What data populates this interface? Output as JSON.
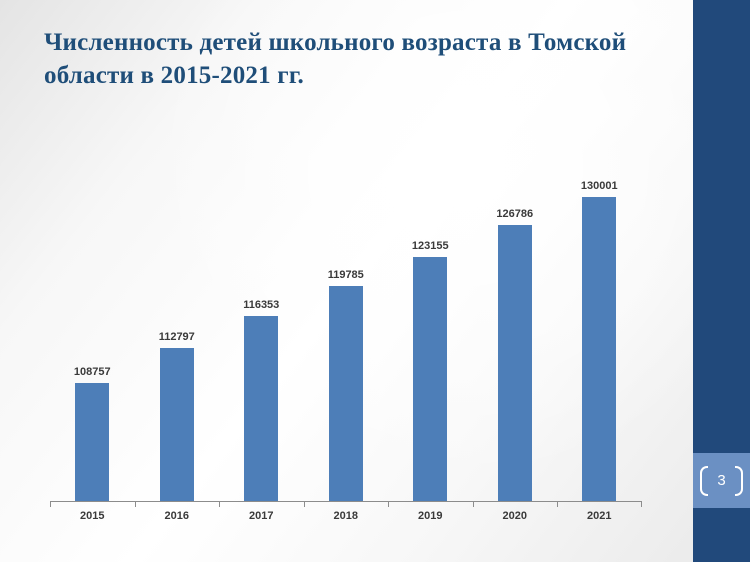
{
  "slide": {
    "title": "Численность детей школьного возраста в Томской области в 2015-2021 гг.",
    "page_number": "3"
  },
  "colors": {
    "title_text": "#1F4E79",
    "bar_fill": "#4D7EB8",
    "axis_line": "#8C8C8C",
    "label_text": "#3A3A3A",
    "side_strip": "#21497B",
    "page_plate": "#6B90C3",
    "page_text": "#FFFFFF"
  },
  "chart_data": {
    "type": "bar",
    "categories": [
      "2015",
      "2016",
      "2017",
      "2018",
      "2019",
      "2020",
      "2021"
    ],
    "values": [
      108757,
      112797,
      116353,
      119785,
      123155,
      126786,
      130001
    ],
    "title": "Численность детей школьного возраста в Томской области в 2015-2021 гг.",
    "xlabel": "",
    "ylabel": "",
    "ylim": [
      95000,
      132000
    ],
    "grid": false,
    "legend": false,
    "data_labels": true,
    "bar_color": "#4D7EB8"
  }
}
